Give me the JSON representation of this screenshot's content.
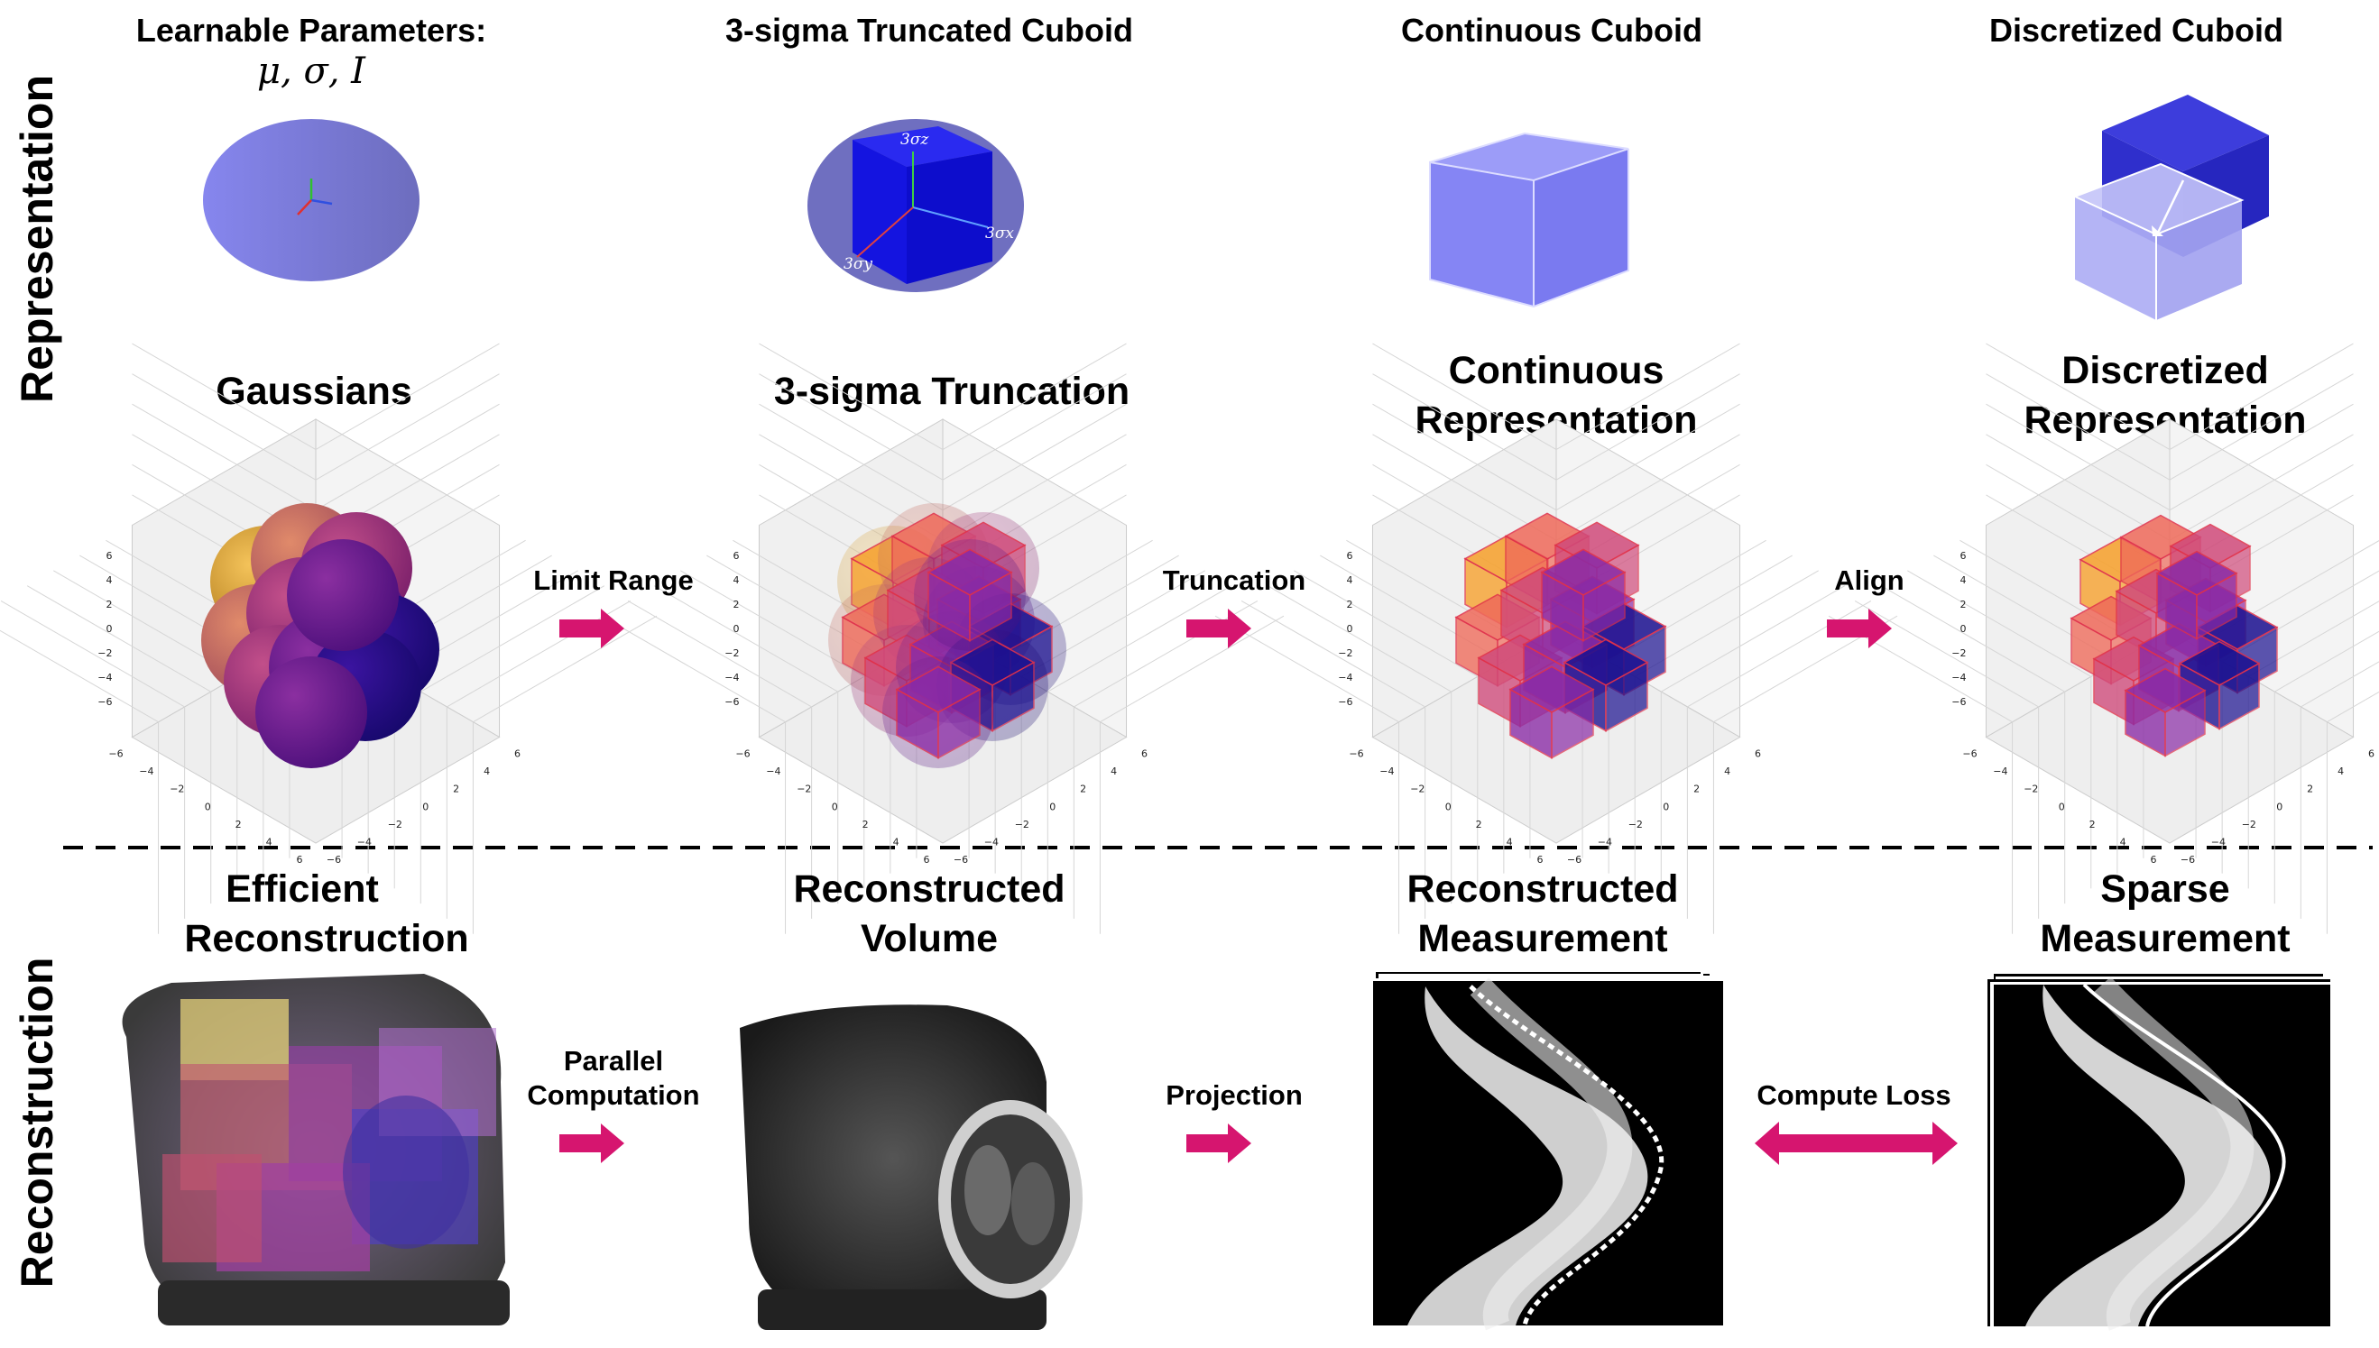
{
  "side_labels": {
    "top": "Representation",
    "bottom": "Reconstruction"
  },
  "top_row": {
    "col1": {
      "line1": "Learnable Parameters:",
      "math": "μ, σ, I"
    },
    "col2": {
      "title": "3-sigma Truncated Cuboid",
      "sx": "3σx",
      "sy": "3σy",
      "sz": "3σz"
    },
    "col3": {
      "title": "Continuous Cuboid"
    },
    "col4": {
      "title": "Discretized Cuboid"
    }
  },
  "middle_row": {
    "col1": {
      "title": "Gaussians"
    },
    "col2": {
      "title": "3-sigma Truncation"
    },
    "col3": {
      "line1": "Continuous",
      "line2": "Representation"
    },
    "col4": {
      "line1": "Discretized",
      "line2": "Representation"
    },
    "arrows": [
      "Limit Range",
      "Truncation",
      "Align"
    ],
    "ticks": [
      "6",
      "4",
      "2",
      "0",
      "−2",
      "−4",
      "−6"
    ]
  },
  "bottom_row": {
    "col1": {
      "line1": "Efficient",
      "line2": "Reconstruction"
    },
    "col2": {
      "line1": "Reconstructed",
      "line2": "Volume"
    },
    "col3": {
      "line1": "Reconstructed",
      "line2": "Measurement"
    },
    "col4": {
      "line1": "Sparse",
      "line2": "Measurement"
    },
    "arrows": {
      "a1_line1": "Parallel",
      "a1_line2": "Computation",
      "a2": "Projection",
      "a3": "Compute Loss"
    }
  },
  "colors": {
    "arrow": "#d6156f",
    "ellipse": "#7d7df0",
    "cuboid_dark": "#1414e6",
    "cuboid_light": "#8f8ff7"
  }
}
